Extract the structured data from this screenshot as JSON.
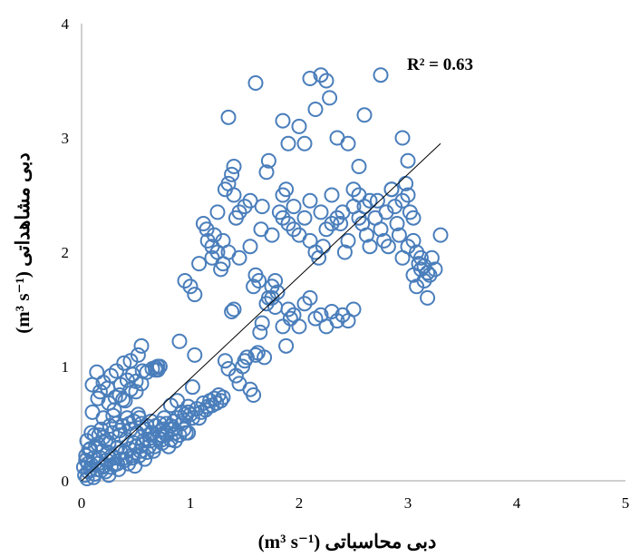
{
  "chart_data": {
    "type": "scatter",
    "title": "",
    "xlabel": "دبی محاسباتی (m³ s⁻¹)",
    "ylabel": "دبی مشاهداتی (m³ s⁻¹)",
    "xlim": [
      0,
      5
    ],
    "ylim": [
      0,
      4
    ],
    "x_ticks": [
      "0",
      "1",
      "2",
      "3",
      "4",
      "5"
    ],
    "y_ticks": [
      "0",
      "1",
      "2",
      "3",
      "4"
    ],
    "annotation": "R² = 0.63",
    "grid": false,
    "legend": "none",
    "marker": "open-circle",
    "marker_color": "#4a7ebb",
    "trendline": {
      "type": "linear",
      "from": [
        0,
        0
      ],
      "to": [
        3.3,
        2.95
      ],
      "color": "#000000"
    },
    "points": [
      [
        0.02,
        0.12
      ],
      [
        0.03,
        0.05
      ],
      [
        0.04,
        0.22
      ],
      [
        0.05,
        0.02
      ],
      [
        0.06,
        0.15
      ],
      [
        0.07,
        0.27
      ],
      [
        0.08,
        0.1
      ],
      [
        0.09,
        0.42
      ],
      [
        0.1,
        0.84
      ],
      [
        0.11,
        0.2
      ],
      [
        0.12,
        0.06
      ],
      [
        0.13,
        0.3
      ],
      [
        0.14,
        0.95
      ],
      [
        0.15,
        0.15
      ],
      [
        0.16,
        0.4
      ],
      [
        0.17,
        0.78
      ],
      [
        0.18,
        0.09
      ],
      [
        0.19,
        0.26
      ],
      [
        0.2,
        0.86
      ],
      [
        0.21,
        0.13
      ],
      [
        0.22,
        0.35
      ],
      [
        0.23,
        0.18
      ],
      [
        0.24,
        0.81
      ],
      [
        0.25,
        0.05
      ],
      [
        0.26,
        0.48
      ],
      [
        0.27,
        0.92
      ],
      [
        0.28,
        0.22
      ],
      [
        0.29,
        0.57
      ],
      [
        0.3,
        0.14
      ],
      [
        0.31,
        0.73
      ],
      [
        0.32,
        0.96
      ],
      [
        0.33,
        0.29
      ],
      [
        0.34,
        0.1
      ],
      [
        0.35,
        0.44
      ],
      [
        0.36,
        0.84
      ],
      [
        0.37,
        0.19
      ],
      [
        0.38,
        0.71
      ],
      [
        0.39,
        1.03
      ],
      [
        0.4,
        0.25
      ],
      [
        0.41,
        0.36
      ],
      [
        0.42,
        0.88
      ],
      [
        0.43,
        0.15
      ],
      [
        0.44,
        0.5
      ],
      [
        0.45,
        1.05
      ],
      [
        0.46,
        0.22
      ],
      [
        0.47,
        0.93
      ],
      [
        0.48,
        0.33
      ],
      [
        0.49,
        0.13
      ],
      [
        0.5,
        0.87
      ],
      [
        0.51,
        0.42
      ],
      [
        0.52,
        1.1
      ],
      [
        0.53,
        0.55
      ],
      [
        0.54,
        0.26
      ],
      [
        0.55,
        1.18
      ],
      [
        0.56,
        0.96
      ],
      [
        0.57,
        0.35
      ],
      [
        0.58,
        0.19
      ],
      [
        0.6,
        0.48
      ],
      [
        0.62,
        0.3
      ],
      [
        0.64,
        0.52
      ],
      [
        0.66,
        0.26
      ],
      [
        0.68,
        0.97
      ],
      [
        0.7,
        1.0
      ],
      [
        0.72,
        0.4
      ],
      [
        0.74,
        0.36
      ],
      [
        0.76,
        0.55
      ],
      [
        0.78,
        0.5
      ],
      [
        0.8,
        0.3
      ],
      [
        0.82,
        0.66
      ],
      [
        0.84,
        0.45
      ],
      [
        0.86,
        0.35
      ],
      [
        0.88,
        0.7
      ],
      [
        0.9,
        1.22
      ],
      [
        0.92,
        0.6
      ],
      [
        0.94,
        0.53
      ],
      [
        0.96,
        0.42
      ],
      [
        0.98,
        0.65
      ],
      [
        1.0,
        0.58
      ],
      [
        1.02,
        0.82
      ],
      [
        1.04,
        1.1
      ],
      [
        1.06,
        0.63
      ],
      [
        1.08,
        0.55
      ],
      [
        1.1,
        0.6
      ],
      [
        1.12,
        0.68
      ],
      [
        1.14,
        0.62
      ],
      [
        1.16,
        0.65
      ],
      [
        1.18,
        0.7
      ],
      [
        1.2,
        0.66
      ],
      [
        1.22,
        0.72
      ],
      [
        1.24,
        0.68
      ],
      [
        1.26,
        0.75
      ],
      [
        1.28,
        0.7
      ],
      [
        1.3,
        0.73
      ],
      [
        1.32,
        1.05
      ],
      [
        1.35,
        0.98
      ],
      [
        1.38,
        1.48
      ],
      [
        1.4,
        1.5
      ],
      [
        1.42,
        0.92
      ],
      [
        1.45,
        0.85
      ],
      [
        1.48,
        1.0
      ],
      [
        1.5,
        1.05
      ],
      [
        1.52,
        1.08
      ],
      [
        1.55,
        0.8
      ],
      [
        1.58,
        0.75
      ],
      [
        1.6,
        1.1
      ],
      [
        1.62,
        1.12
      ],
      [
        1.64,
        1.3
      ],
      [
        1.66,
        1.38
      ],
      [
        1.68,
        1.08
      ],
      [
        1.7,
        1.55
      ],
      [
        1.72,
        1.6
      ],
      [
        1.75,
        1.6
      ],
      [
        1.78,
        1.52
      ],
      [
        1.8,
        1.65
      ],
      [
        1.85,
        1.35
      ],
      [
        1.88,
        1.18
      ],
      [
        1.9,
        1.5
      ],
      [
        1.92,
        1.42
      ],
      [
        1.95,
        1.45
      ],
      [
        2.0,
        1.35
      ],
      [
        2.05,
        1.55
      ],
      [
        2.1,
        1.6
      ],
      [
        2.15,
        1.42
      ],
      [
        2.2,
        1.45
      ],
      [
        2.25,
        1.35
      ],
      [
        2.3,
        1.48
      ],
      [
        2.35,
        1.4
      ],
      [
        2.4,
        1.45
      ],
      [
        2.45,
        1.4
      ],
      [
        2.5,
        1.5
      ],
      [
        0.95,
        1.75
      ],
      [
        1.0,
        1.7
      ],
      [
        1.04,
        1.63
      ],
      [
        1.08,
        1.9
      ],
      [
        1.12,
        2.25
      ],
      [
        1.16,
        2.1
      ],
      [
        1.2,
        2.05
      ],
      [
        1.22,
        2.15
      ],
      [
        1.25,
        2.0
      ],
      [
        1.28,
        1.85
      ],
      [
        1.3,
        1.9
      ],
      [
        1.32,
        2.55
      ],
      [
        1.35,
        2.6
      ],
      [
        1.38,
        2.68
      ],
      [
        1.4,
        2.75
      ],
      [
        1.42,
        2.3
      ],
      [
        1.45,
        2.35
      ],
      [
        1.5,
        2.4
      ],
      [
        1.55,
        2.45
      ],
      [
        1.58,
        1.7
      ],
      [
        1.6,
        1.8
      ],
      [
        1.63,
        1.75
      ],
      [
        1.66,
        2.4
      ],
      [
        1.7,
        2.7
      ],
      [
        1.72,
        2.8
      ],
      [
        1.75,
        1.7
      ],
      [
        1.78,
        1.75
      ],
      [
        1.82,
        2.35
      ],
      [
        1.85,
        2.5
      ],
      [
        1.88,
        2.55
      ],
      [
        1.9,
        2.25
      ],
      [
        1.95,
        2.2
      ],
      [
        2.0,
        2.15
      ],
      [
        2.05,
        2.3
      ],
      [
        2.1,
        2.1
      ],
      [
        2.15,
        2.0
      ],
      [
        2.18,
        1.95
      ],
      [
        2.22,
        2.05
      ],
      [
        2.25,
        2.2
      ],
      [
        2.3,
        2.5
      ],
      [
        2.35,
        2.3
      ],
      [
        2.38,
        2.25
      ],
      [
        2.42,
        2.0
      ],
      [
        2.45,
        2.1
      ],
      [
        2.5,
        2.4
      ],
      [
        2.55,
        2.3
      ],
      [
        2.58,
        2.25
      ],
      [
        2.62,
        2.15
      ],
      [
        2.65,
        2.05
      ],
      [
        2.7,
        2.3
      ],
      [
        2.72,
        2.45
      ],
      [
        2.75,
        2.2
      ],
      [
        2.78,
        2.1
      ],
      [
        2.8,
        2.35
      ],
      [
        2.82,
        2.05
      ],
      [
        2.85,
        2.55
      ],
      [
        2.88,
        2.4
      ],
      [
        2.9,
        2.25
      ],
      [
        2.92,
        2.15
      ],
      [
        2.95,
        2.45
      ],
      [
        2.98,
        2.6
      ],
      [
        3.0,
        2.5
      ],
      [
        3.02,
        2.35
      ],
      [
        3.05,
        2.1
      ],
      [
        3.08,
        2.0
      ],
      [
        3.1,
        1.9
      ],
      [
        3.12,
        1.85
      ],
      [
        3.15,
        1.75
      ],
      [
        3.18,
        1.6
      ],
      [
        3.2,
        1.8
      ],
      [
        3.22,
        1.95
      ],
      [
        3.25,
        1.85
      ],
      [
        3.3,
        2.15
      ],
      [
        2.95,
        1.95
      ],
      [
        3.0,
        2.05
      ],
      [
        3.05,
        1.8
      ],
      [
        3.08,
        1.7
      ],
      [
        3.12,
        1.95
      ],
      [
        3.15,
        1.88
      ],
      [
        3.18,
        1.82
      ],
      [
        1.35,
        3.18
      ],
      [
        1.6,
        3.48
      ],
      [
        1.85,
        3.15
      ],
      [
        1.9,
        2.95
      ],
      [
        2.0,
        3.1
      ],
      [
        2.05,
        2.95
      ],
      [
        2.1,
        3.52
      ],
      [
        2.15,
        3.25
      ],
      [
        2.2,
        3.55
      ],
      [
        2.25,
        3.5
      ],
      [
        2.28,
        3.35
      ],
      [
        2.35,
        3.0
      ],
      [
        2.45,
        2.95
      ],
      [
        2.55,
        2.75
      ],
      [
        2.6,
        3.2
      ],
      [
        2.65,
        2.45
      ],
      [
        2.75,
        3.55
      ],
      [
        2.85,
        2.55
      ],
      [
        2.95,
        3.0
      ],
      [
        3.0,
        2.8
      ],
      [
        3.05,
        2.3
      ],
      [
        2.5,
        2.55
      ],
      [
        2.55,
        2.5
      ],
      [
        2.6,
        2.4
      ],
      [
        2.4,
        2.35
      ],
      [
        2.3,
        2.25
      ],
      [
        2.2,
        2.35
      ],
      [
        2.1,
        2.45
      ],
      [
        1.95,
        2.4
      ],
      [
        1.85,
        2.3
      ],
      [
        1.75,
        2.15
      ],
      [
        1.65,
        2.2
      ],
      [
        1.55,
        2.05
      ],
      [
        1.45,
        1.95
      ],
      [
        1.35,
        2.0
      ],
      [
        1.3,
        2.1
      ],
      [
        1.2,
        1.95
      ],
      [
        1.15,
        2.2
      ],
      [
        1.25,
        2.35
      ],
      [
        1.4,
        2.5
      ],
      [
        0.05,
        0.35
      ],
      [
        0.08,
        0.28
      ],
      [
        0.12,
        0.4
      ],
      [
        0.15,
        0.32
      ],
      [
        0.18,
        0.45
      ],
      [
        0.2,
        0.38
      ],
      [
        0.25,
        0.33
      ],
      [
        0.28,
        0.42
      ],
      [
        0.32,
        0.5
      ],
      [
        0.35,
        0.4
      ],
      [
        0.38,
        0.48
      ],
      [
        0.42,
        0.55
      ],
      [
        0.45,
        0.45
      ],
      [
        0.48,
        0.52
      ],
      [
        0.52,
        0.58
      ],
      [
        0.55,
        0.5
      ],
      [
        0.58,
        0.45
      ],
      [
        0.62,
        0.4
      ],
      [
        0.65,
        0.42
      ],
      [
        0.68,
        0.48
      ],
      [
        0.72,
        0.5
      ],
      [
        0.75,
        0.45
      ],
      [
        0.78,
        0.42
      ],
      [
        0.82,
        0.48
      ],
      [
        0.85,
        0.52
      ],
      [
        0.88,
        0.55
      ],
      [
        0.92,
        0.5
      ],
      [
        0.95,
        0.58
      ],
      [
        0.98,
        0.6
      ],
      [
        1.02,
        0.55
      ],
      [
        0.04,
        0.18
      ],
      [
        0.06,
        0.08
      ],
      [
        0.09,
        0.14
      ],
      [
        0.11,
        0.03
      ],
      [
        0.14,
        0.1
      ],
      [
        0.17,
        0.2
      ],
      [
        0.19,
        0.12
      ],
      [
        0.22,
        0.08
      ],
      [
        0.24,
        0.25
      ],
      [
        0.27,
        0.12
      ],
      [
        0.3,
        0.2
      ],
      [
        0.33,
        0.15
      ],
      [
        0.36,
        0.25
      ],
      [
        0.4,
        0.18
      ],
      [
        0.44,
        0.28
      ],
      [
        0.47,
        0.2
      ],
      [
        0.5,
        0.3
      ],
      [
        0.53,
        0.22
      ],
      [
        0.56,
        0.32
      ],
      [
        0.6,
        0.25
      ],
      [
        0.63,
        0.35
      ],
      [
        0.67,
        0.3
      ],
      [
        0.7,
        0.38
      ],
      [
        0.74,
        0.33
      ],
      [
        0.78,
        0.4
      ],
      [
        0.82,
        0.36
      ],
      [
        0.86,
        0.42
      ],
      [
        0.9,
        0.4
      ],
      [
        0.94,
        0.45
      ],
      [
        0.98,
        0.42
      ],
      [
        0.1,
        0.6
      ],
      [
        0.15,
        0.72
      ],
      [
        0.2,
        0.55
      ],
      [
        0.25,
        0.68
      ],
      [
        0.3,
        0.62
      ],
      [
        0.35,
        0.75
      ],
      [
        0.4,
        0.7
      ],
      [
        0.45,
        0.8
      ],
      [
        0.5,
        0.78
      ],
      [
        0.55,
        0.85
      ],
      [
        0.6,
        0.95
      ],
      [
        0.65,
        0.98
      ],
      [
        0.7,
        0.97
      ],
      [
        0.72,
        1.0
      ],
      [
        0.68,
        0.99
      ]
    ]
  }
}
